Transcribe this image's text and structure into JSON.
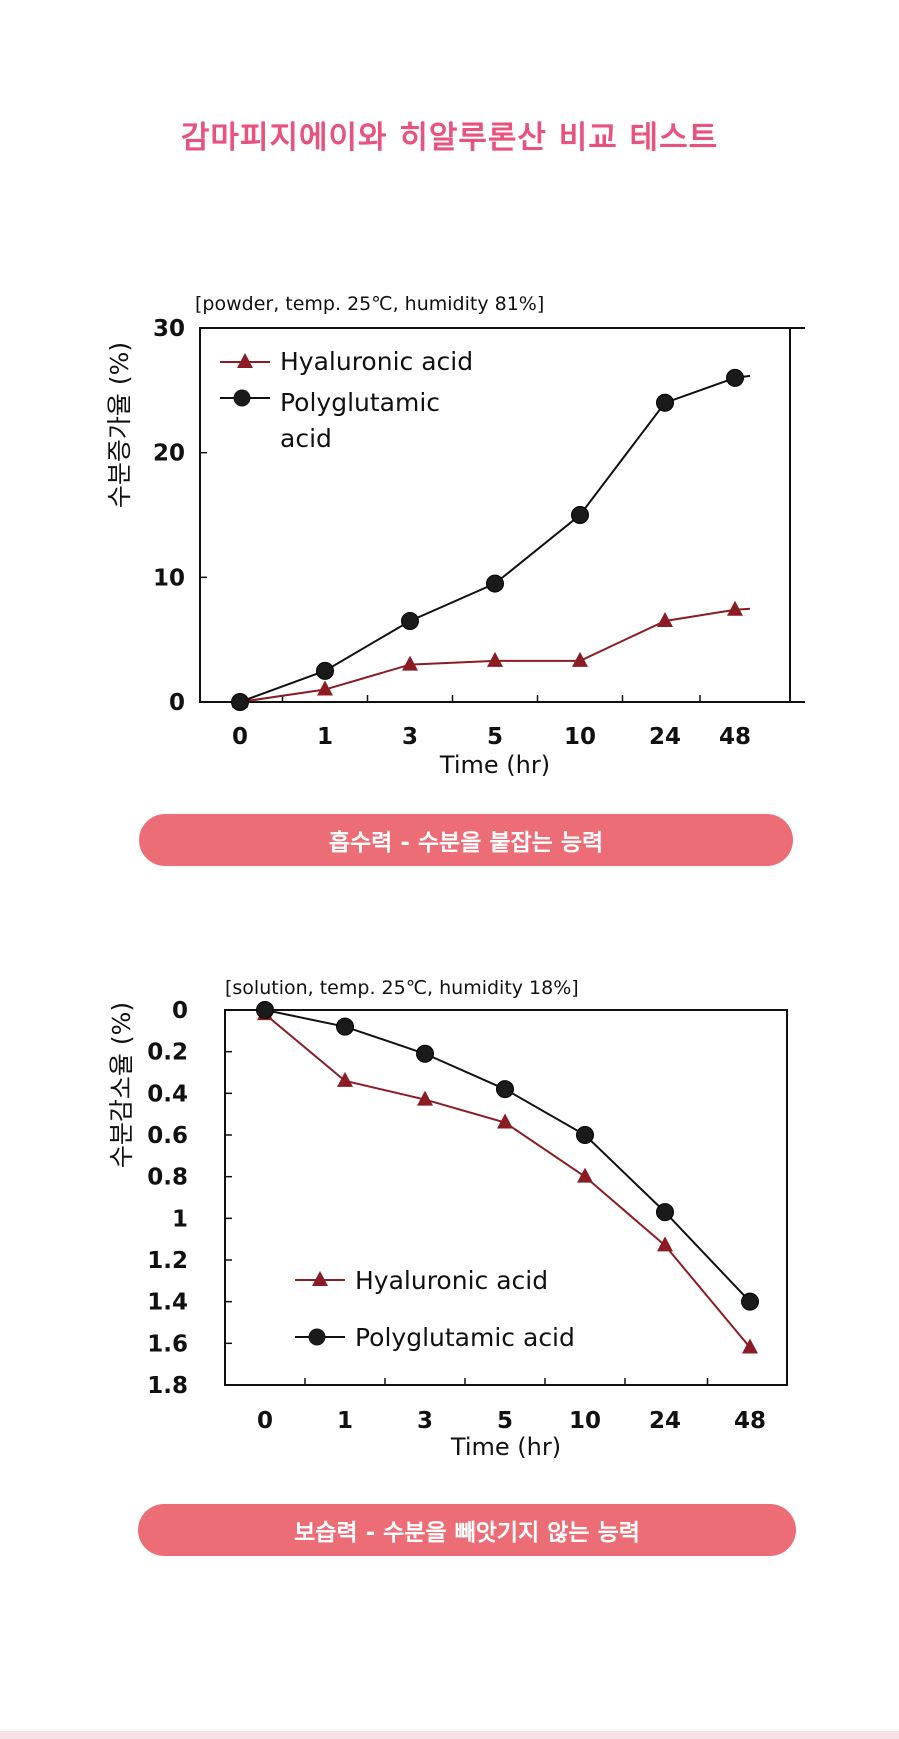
{
  "page": {
    "title": "감마피지에이와 히알루론산 비교 테스트"
  },
  "colors": {
    "title": "#e8527f",
    "pill": "#ed6d76",
    "hyaluronic": "#8b1c24",
    "polyglutamic": "#111111"
  },
  "chart_data": [
    {
      "type": "line",
      "title": "[powder, temp. 25℃, humidity 81%]",
      "xlabel": "Time (hr)",
      "ylabel": "수분증가율 (%)",
      "categories": [
        "0",
        "1",
        "3",
        "5",
        "10",
        "24",
        "48"
      ],
      "ylim": [
        0,
        30
      ],
      "yticks": [
        "0",
        "10",
        "20",
        "30"
      ],
      "y_reversed": false,
      "legend": "top-left",
      "series": [
        {
          "name": "Hyaluronic acid",
          "marker": "triangle",
          "values": [
            0,
            1,
            3,
            3.3,
            3.3,
            6.5,
            7.4
          ]
        },
        {
          "name": "Polyglutamic acid",
          "legend_lines": [
            "Polyglutamic",
            "acid"
          ],
          "marker": "circle",
          "values": [
            0,
            2.5,
            6.5,
            9.5,
            15,
            24,
            26
          ]
        }
      ]
    },
    {
      "type": "line",
      "title": "[solution, temp. 25℃, humidity 18%]",
      "xlabel": "Time (hr)",
      "ylabel": "수분감소율 (%)",
      "categories": [
        "0",
        "1",
        "3",
        "5",
        "10",
        "24",
        "48"
      ],
      "ylim": [
        0,
        1.8
      ],
      "yticks": [
        "0",
        "0.2",
        "0.4",
        "0.6",
        "0.8",
        "1",
        "1.2",
        "1.4",
        "1.6",
        "1.8"
      ],
      "y_reversed": true,
      "legend": "bottom-left",
      "series": [
        {
          "name": "Hyaluronic acid",
          "marker": "triangle",
          "values": [
            0.02,
            0.34,
            0.43,
            0.54,
            0.8,
            1.13,
            1.62
          ]
        },
        {
          "name": "Polyglutamic acid",
          "legend_lines": [
            "Polyglutamic acid"
          ],
          "marker": "circle",
          "values": [
            0,
            0.08,
            0.21,
            0.38,
            0.6,
            0.97,
            1.4
          ]
        }
      ]
    }
  ],
  "pills": [
    {
      "label": "흡수력 - 수분을 붙잡는 능력"
    },
    {
      "label": "보습력 - 수분을 빼앗기지 않는 능력"
    }
  ]
}
